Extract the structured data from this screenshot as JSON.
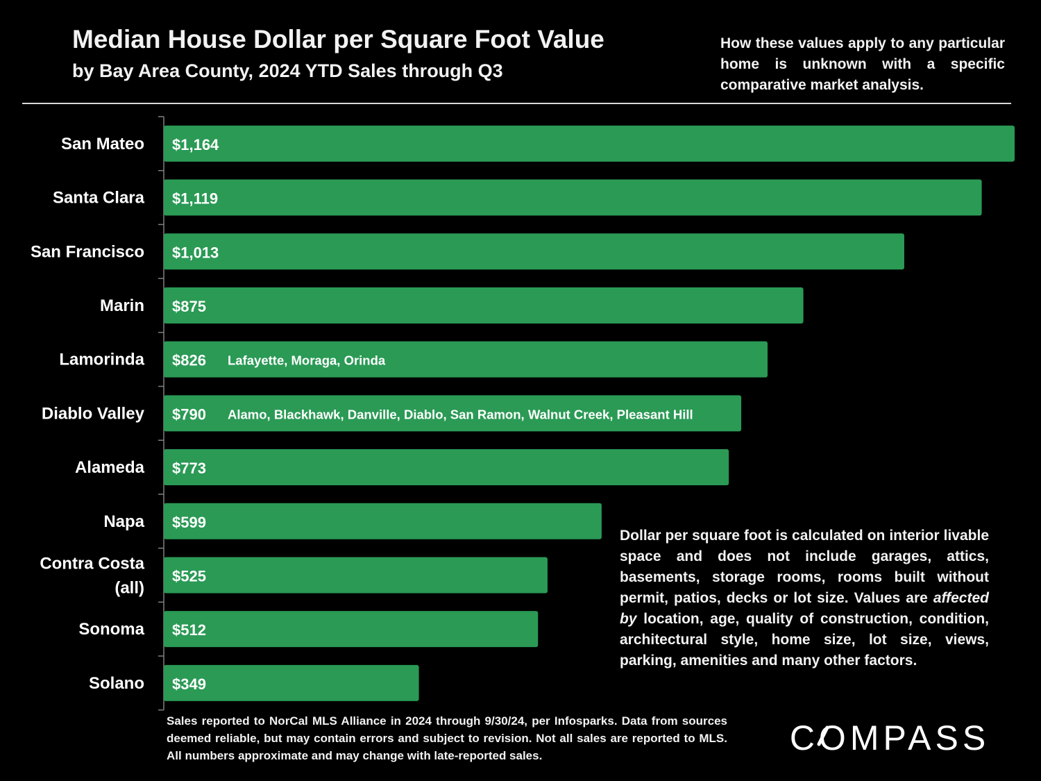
{
  "chart_data": {
    "type": "bar",
    "orientation": "horizontal",
    "title": "Median House Dollar per Square Foot Value",
    "subtitle": "by Bay Area County, 2024 YTD Sales through Q3",
    "categories": [
      "San Mateo",
      "Santa Clara",
      "San Francisco",
      "Marin",
      "Lamorinda",
      "Diablo Valley",
      "Alameda",
      "Napa",
      "Contra Costa (all)",
      "Sonoma",
      "Solano"
    ],
    "values": [
      1164,
      1119,
      1013,
      875,
      826,
      790,
      773,
      599,
      525,
      512,
      349
    ],
    "value_labels": [
      "$1,164",
      "$1,119",
      "$1,013",
      "$875",
      "$826",
      "$790",
      "$773",
      "$599",
      "$525",
      "$512",
      "$349"
    ],
    "bar_annotations": [
      "",
      "",
      "",
      "",
      "Lafayette, Moraga, Orinda",
      "Alamo, Blackhawk, Danville, Diablo, San Ramon, Walnut Creek, Pleasant Hill",
      "",
      "",
      "",
      "",
      ""
    ],
    "xlim": [
      0,
      1164
    ],
    "bar_color": "#2a9a55",
    "grid": false,
    "legend": "none"
  },
  "notes": {
    "top": "How these values apply to any particular home is unknown with a specific comparative market analysis.",
    "middle_part1": "Dollar per square foot is calculated on interior livable space and does not include garages, attics, basements, storage rooms, rooms built without permit, patios, decks or lot size. Values are ",
    "middle_emphasis": "affected by",
    "middle_part2": " location, age, quality of construction, condition, architectural style, home size, lot size, views, parking, amenities and many other factors.",
    "footnote": "Sales reported to NorCal MLS Alliance in 2024 through 9/30/24, per Infosparks. Data from sources deemed reliable, but may contain errors and subject to revision. Not all sales are reported to MLS. All numbers approximate and may change with late-reported sales."
  },
  "logo": {
    "text": "COMPASS"
  }
}
